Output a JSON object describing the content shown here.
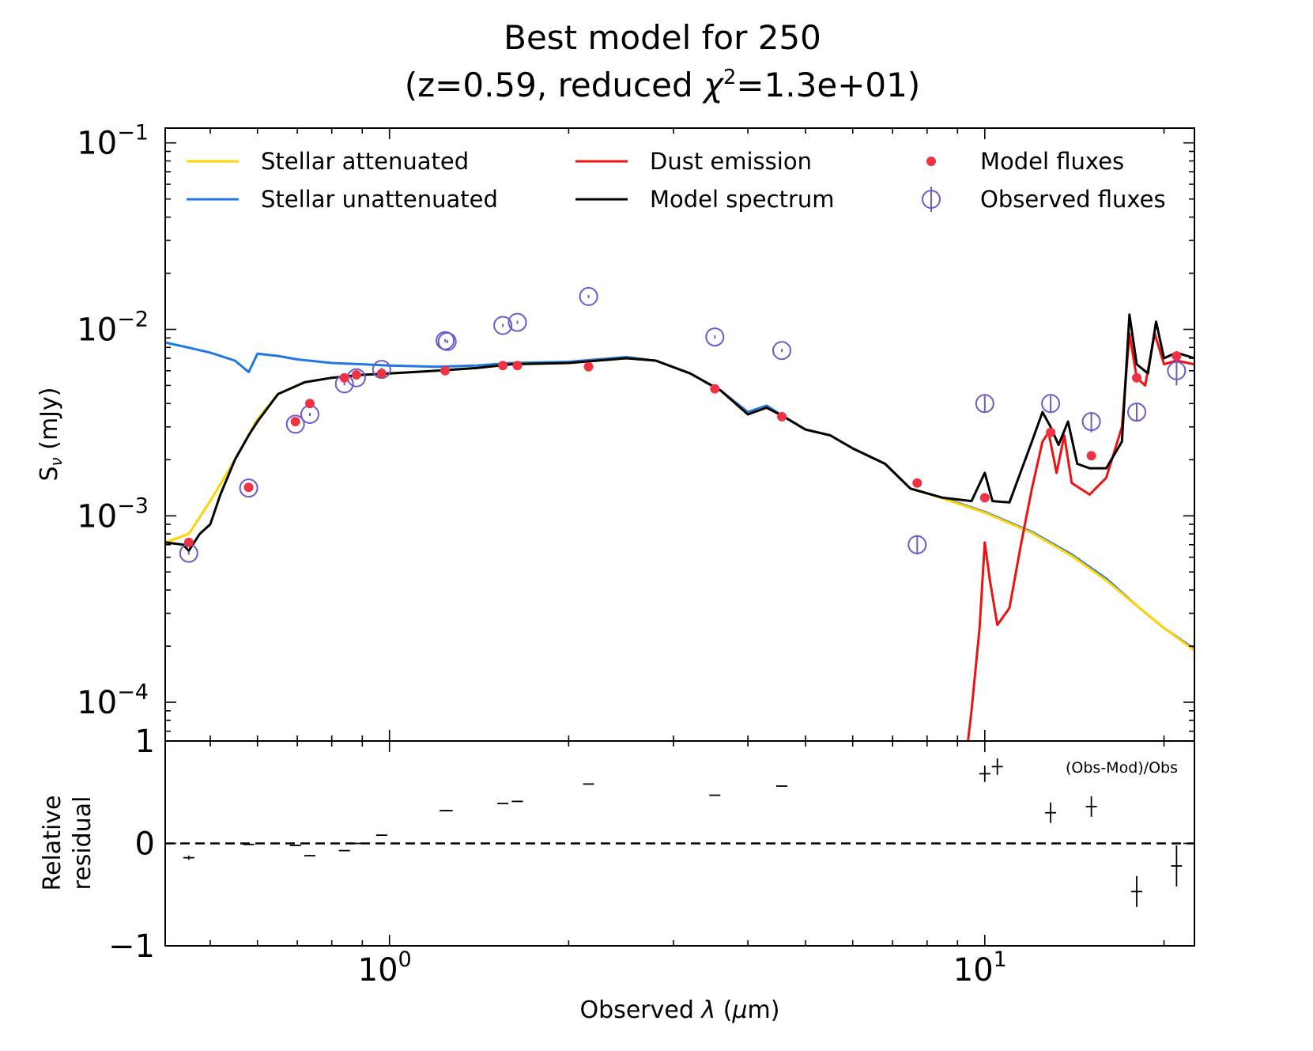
{
  "chart_data": {
    "type": "line",
    "title_line1": "Best model for 250",
    "title_line2_prefix": "(z=0.59, reduced ",
    "title_line2_chi": "χ",
    "title_line2_sup": "2",
    "title_line2_suffix": "=1.3e+01)",
    "xlabel_prefix": "Observed ",
    "xlabel_lambda": "λ",
    "xlabel_suffix": " (",
    "xlabel_mu": "μ",
    "xlabel_end": "m)",
    "ylabel_main": "S",
    "ylabel_sub": "ν",
    "ylabel_unit": " (mJy)",
    "residual_ylabel_line1": "Relative",
    "residual_ylabel_line2": "residual",
    "residual_note": "(Obs-Mod)/Obs",
    "x_scale": "log",
    "y_scale": "log",
    "xlim": [
      0.42,
      22.5
    ],
    "ylim": [
      6.2e-05,
      0.12
    ],
    "residual_ylim": [
      -1,
      1
    ],
    "x_ticks": [
      {
        "base": "10",
        "exp": "0",
        "value": 1
      },
      {
        "base": "10",
        "exp": "1",
        "value": 10
      }
    ],
    "y_ticks": [
      {
        "base": "10",
        "exp": "−1",
        "value": 0.1
      },
      {
        "base": "10",
        "exp": "−2",
        "value": 0.01
      },
      {
        "base": "10",
        "exp": "−3",
        "value": 0.001
      },
      {
        "base": "10",
        "exp": "−4",
        "value": 0.0001
      }
    ],
    "residual_ticks": [
      {
        "label": "1",
        "value": 1
      },
      {
        "label": "0",
        "value": 0
      },
      {
        "label": "−1",
        "value": -1
      }
    ],
    "legend": [
      {
        "label": "Stellar attenuated",
        "kind": "line",
        "color": "#ffd400"
      },
      {
        "label": "Stellar unattenuated",
        "kind": "line",
        "color": "#1f77e4"
      },
      {
        "label": "Dust emission",
        "kind": "line",
        "color": "#ee1111"
      },
      {
        "label": "Model spectrum",
        "kind": "line",
        "color": "#000000"
      },
      {
        "label": "Model fluxes",
        "kind": "dot",
        "color": "#ee3344"
      },
      {
        "label": "Observed fluxes",
        "kind": "circle",
        "color": "#6a5acd"
      }
    ],
    "colors": {
      "stellar_attenuated": "#ffd400",
      "stellar_unattenuated": "#1f77e4",
      "dust_emission": "#ee1111",
      "model_spectrum": "#000000",
      "model_fluxes": "#ee3344",
      "observed_fluxes": "#6a5acd"
    },
    "series": {
      "stellar_unattenuated": [
        [
          0.42,
          0.0085
        ],
        [
          0.45,
          0.0081
        ],
        [
          0.5,
          0.0075
        ],
        [
          0.55,
          0.0068
        ],
        [
          0.58,
          0.0059
        ],
        [
          0.6,
          0.0074
        ],
        [
          0.65,
          0.0072
        ],
        [
          0.7,
          0.0069
        ],
        [
          0.8,
          0.0066
        ],
        [
          0.9,
          0.0065
        ],
        [
          1.0,
          0.0064
        ],
        [
          1.2,
          0.0063
        ],
        [
          1.4,
          0.0064
        ],
        [
          1.6,
          0.0066
        ],
        [
          2.0,
          0.0067
        ],
        [
          2.5,
          0.0071
        ],
        [
          2.8,
          0.0068
        ],
        [
          3.2,
          0.0058
        ],
        [
          3.6,
          0.0047
        ],
        [
          4.0,
          0.0036
        ],
        [
          4.3,
          0.0039
        ],
        [
          4.6,
          0.0034
        ],
        [
          5.0,
          0.0029
        ],
        [
          5.5,
          0.0027
        ],
        [
          6.0,
          0.0023
        ],
        [
          6.8,
          0.0019
        ],
        [
          7.5,
          0.0014
        ],
        [
          8.5,
          0.00125
        ],
        [
          10.0,
          0.00105
        ],
        [
          12.0,
          0.00082
        ],
        [
          14.0,
          0.00062
        ],
        [
          16.0,
          0.00046
        ],
        [
          18.0,
          0.00033
        ],
        [
          20.0,
          0.00025
        ],
        [
          22.5,
          0.000193
        ]
      ],
      "stellar_attenuated": [
        [
          0.42,
          0.00072
        ],
        [
          0.46,
          0.0008
        ],
        [
          0.5,
          0.0012
        ],
        [
          0.55,
          0.002
        ],
        [
          0.6,
          0.0033
        ],
        [
          0.65,
          0.0045
        ],
        [
          0.72,
          0.0052
        ],
        [
          0.8,
          0.0055
        ],
        [
          0.9,
          0.0057
        ],
        [
          1.0,
          0.0058
        ],
        [
          1.2,
          0.006
        ],
        [
          1.4,
          0.0062
        ],
        [
          1.6,
          0.0065
        ],
        [
          2.0,
          0.0066
        ],
        [
          2.5,
          0.007
        ],
        [
          2.8,
          0.0068
        ],
        [
          3.2,
          0.0058
        ],
        [
          3.6,
          0.0047
        ],
        [
          4.0,
          0.0035
        ],
        [
          4.3,
          0.0038
        ],
        [
          4.6,
          0.0034
        ],
        [
          5.0,
          0.0029
        ],
        [
          5.5,
          0.0027
        ],
        [
          6.0,
          0.0023
        ],
        [
          6.8,
          0.0019
        ],
        [
          7.5,
          0.0014
        ],
        [
          8.5,
          0.00124
        ],
        [
          10.0,
          0.00104
        ],
        [
          12.0,
          0.00081
        ],
        [
          14.0,
          0.00061
        ],
        [
          16.0,
          0.00045
        ],
        [
          18.0,
          0.00033
        ],
        [
          20.0,
          0.00025
        ],
        [
          22.5,
          0.00019
        ]
      ],
      "dust_emission": [
        [
          9.3,
          5e-05
        ],
        [
          9.5,
          9e-05
        ],
        [
          9.8,
          0.00025
        ],
        [
          10.0,
          0.00072
        ],
        [
          10.2,
          0.00045
        ],
        [
          10.5,
          0.00026
        ],
        [
          11.0,
          0.00032
        ],
        [
          11.5,
          0.0007
        ],
        [
          12.0,
          0.0014
        ],
        [
          12.5,
          0.0025
        ],
        [
          12.8,
          0.0028
        ],
        [
          13.2,
          0.0017
        ],
        [
          13.6,
          0.0027
        ],
        [
          14.0,
          0.0015
        ],
        [
          15.0,
          0.0013
        ],
        [
          16.0,
          0.0016
        ],
        [
          17.0,
          0.003
        ],
        [
          17.5,
          0.0095
        ],
        [
          18.0,
          0.0055
        ],
        [
          18.6,
          0.005
        ],
        [
          19.3,
          0.0095
        ],
        [
          20.0,
          0.0065
        ],
        [
          21.0,
          0.0068
        ],
        [
          22.5,
          0.0065
        ]
      ],
      "model_spectrum": [
        [
          0.42,
          0.00072
        ],
        [
          0.45,
          0.0007
        ],
        [
          0.46,
          0.00065
        ],
        [
          0.48,
          0.0008
        ],
        [
          0.5,
          0.0009
        ],
        [
          0.52,
          0.0013
        ],
        [
          0.55,
          0.002
        ],
        [
          0.58,
          0.0027
        ],
        [
          0.6,
          0.0032
        ],
        [
          0.65,
          0.0045
        ],
        [
          0.72,
          0.0052
        ],
        [
          0.8,
          0.0055
        ],
        [
          0.9,
          0.0057
        ],
        [
          1.0,
          0.0058
        ],
        [
          1.2,
          0.006
        ],
        [
          1.4,
          0.0062
        ],
        [
          1.6,
          0.0065
        ],
        [
          2.0,
          0.0066
        ],
        [
          2.5,
          0.007
        ],
        [
          2.8,
          0.0068
        ],
        [
          3.2,
          0.0058
        ],
        [
          3.6,
          0.0047
        ],
        [
          4.0,
          0.0035
        ],
        [
          4.3,
          0.0038
        ],
        [
          4.6,
          0.0034
        ],
        [
          5.0,
          0.0029
        ],
        [
          5.5,
          0.0027
        ],
        [
          6.0,
          0.0023
        ],
        [
          6.8,
          0.0019
        ],
        [
          7.5,
          0.0014
        ],
        [
          8.5,
          0.00125
        ],
        [
          9.5,
          0.0012
        ],
        [
          10.0,
          0.0017
        ],
        [
          10.3,
          0.0012
        ],
        [
          11.0,
          0.00118
        ],
        [
          12.0,
          0.0025
        ],
        [
          12.5,
          0.0036
        ],
        [
          12.9,
          0.003
        ],
        [
          13.3,
          0.0024
        ],
        [
          13.8,
          0.0032
        ],
        [
          14.3,
          0.0019
        ],
        [
          15.0,
          0.0018
        ],
        [
          16.0,
          0.0018
        ],
        [
          17.0,
          0.0025
        ],
        [
          17.5,
          0.012
        ],
        [
          18.0,
          0.0065
        ],
        [
          18.8,
          0.0058
        ],
        [
          19.4,
          0.011
        ],
        [
          20.0,
          0.007
        ],
        [
          21.0,
          0.0075
        ],
        [
          22.5,
          0.007
        ]
      ]
    },
    "model_fluxes": [
      [
        0.46,
        0.00072
      ],
      [
        0.58,
        0.00142
      ],
      [
        0.695,
        0.0032
      ],
      [
        0.735,
        0.004
      ],
      [
        0.84,
        0.0055
      ],
      [
        0.88,
        0.0057
      ],
      [
        0.97,
        0.0058
      ],
      [
        1.24,
        0.006
      ],
      [
        1.55,
        0.0064
      ],
      [
        1.64,
        0.0064
      ],
      [
        2.16,
        0.0063
      ],
      [
        3.52,
        0.0048
      ],
      [
        4.56,
        0.0034
      ],
      [
        7.7,
        0.0015
      ],
      [
        10.0,
        0.00125
      ],
      [
        12.9,
        0.0028
      ],
      [
        15.1,
        0.0021
      ],
      [
        18.0,
        0.0055
      ],
      [
        21.0,
        0.0072
      ]
    ],
    "observed_fluxes": [
      [
        0.46,
        0.00063
      ],
      [
        0.58,
        0.00141
      ],
      [
        0.695,
        0.0031
      ],
      [
        0.735,
        0.0035
      ],
      [
        0.84,
        0.0051
      ],
      [
        0.88,
        0.0055
      ],
      [
        0.97,
        0.0061
      ],
      [
        1.24,
        0.0087
      ],
      [
        1.25,
        0.0086
      ],
      [
        1.55,
        0.0105
      ],
      [
        1.64,
        0.0109
      ],
      [
        2.16,
        0.015
      ],
      [
        3.52,
        0.0091
      ],
      [
        4.56,
        0.0077
      ],
      [
        7.7,
        0.0007
      ],
      [
        10.0,
        0.004
      ],
      [
        12.9,
        0.004
      ],
      [
        15.1,
        0.0032
      ],
      [
        18.0,
        0.0036
      ],
      [
        21.0,
        0.006
      ]
    ],
    "observed_errors": [
      [
        0.46,
        0.0
      ],
      [
        0.58,
        0.0
      ],
      [
        0.695,
        0.0
      ],
      [
        0.735,
        0.0
      ],
      [
        0.84,
        0.0
      ],
      [
        0.88,
        0.0
      ],
      [
        0.97,
        0.0
      ],
      [
        1.24,
        0.0
      ],
      [
        1.25,
        0.0
      ],
      [
        1.55,
        0.0
      ],
      [
        1.64,
        0.0
      ],
      [
        2.16,
        0.0
      ],
      [
        3.52,
        0.0
      ],
      [
        4.56,
        0.0
      ],
      [
        7.7,
        8e-05
      ],
      [
        10.0,
        0.0004
      ],
      [
        12.9,
        0.0004
      ],
      [
        15.1,
        0.0004
      ],
      [
        18.0,
        0.0004
      ],
      [
        21.0,
        0.001
      ]
    ],
    "residuals": [
      [
        0.46,
        -0.14,
        0.02
      ],
      [
        0.58,
        -0.01,
        0.01
      ],
      [
        0.695,
        -0.02,
        0.01
      ],
      [
        0.735,
        -0.12,
        0.01
      ],
      [
        0.84,
        -0.07,
        0.01
      ],
      [
        0.88,
        0.0,
        0.01
      ],
      [
        0.97,
        0.08,
        0.01
      ],
      [
        1.24,
        0.32,
        0.01
      ],
      [
        1.25,
        0.32,
        0.01
      ],
      [
        1.55,
        0.39,
        0.01
      ],
      [
        1.64,
        0.41,
        0.01
      ],
      [
        2.16,
        0.58,
        0.01
      ],
      [
        3.52,
        0.47,
        0.01
      ],
      [
        4.56,
        0.56,
        0.01
      ],
      [
        10.0,
        0.68,
        0.08
      ],
      [
        10.5,
        0.75,
        0.08
      ],
      [
        12.9,
        0.3,
        0.1
      ],
      [
        15.1,
        0.36,
        0.1
      ],
      [
        18.0,
        -0.47,
        0.15
      ],
      [
        21.0,
        -0.22,
        0.2
      ]
    ]
  }
}
